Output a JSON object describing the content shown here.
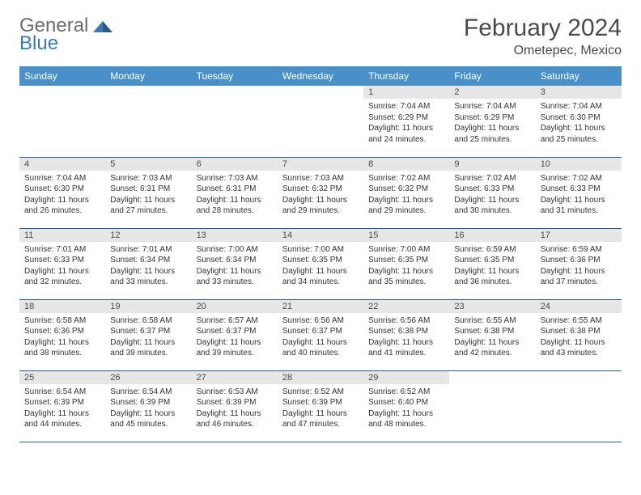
{
  "brand": {
    "part1": "General",
    "part2": "Blue"
  },
  "title": "February 2024",
  "location": "Ometepec, Mexico",
  "colors": {
    "header_bg": "#4a90c8",
    "header_text": "#ffffff",
    "daynum_bg": "#e6e6e6",
    "border": "#2a5a8a",
    "logo_blue": "#3b7ab5",
    "logo_gray": "#6b6b6b"
  },
  "weekdays": [
    "Sunday",
    "Monday",
    "Tuesday",
    "Wednesday",
    "Thursday",
    "Friday",
    "Saturday"
  ],
  "weeks": [
    [
      {
        "n": "",
        "sr": "",
        "ss": "",
        "dl": ""
      },
      {
        "n": "",
        "sr": "",
        "ss": "",
        "dl": ""
      },
      {
        "n": "",
        "sr": "",
        "ss": "",
        "dl": ""
      },
      {
        "n": "",
        "sr": "",
        "ss": "",
        "dl": ""
      },
      {
        "n": "1",
        "sr": "Sunrise: 7:04 AM",
        "ss": "Sunset: 6:29 PM",
        "dl": "Daylight: 11 hours and 24 minutes."
      },
      {
        "n": "2",
        "sr": "Sunrise: 7:04 AM",
        "ss": "Sunset: 6:29 PM",
        "dl": "Daylight: 11 hours and 25 minutes."
      },
      {
        "n": "3",
        "sr": "Sunrise: 7:04 AM",
        "ss": "Sunset: 6:30 PM",
        "dl": "Daylight: 11 hours and 25 minutes."
      }
    ],
    [
      {
        "n": "4",
        "sr": "Sunrise: 7:04 AM",
        "ss": "Sunset: 6:30 PM",
        "dl": "Daylight: 11 hours and 26 minutes."
      },
      {
        "n": "5",
        "sr": "Sunrise: 7:03 AM",
        "ss": "Sunset: 6:31 PM",
        "dl": "Daylight: 11 hours and 27 minutes."
      },
      {
        "n": "6",
        "sr": "Sunrise: 7:03 AM",
        "ss": "Sunset: 6:31 PM",
        "dl": "Daylight: 11 hours and 28 minutes."
      },
      {
        "n": "7",
        "sr": "Sunrise: 7:03 AM",
        "ss": "Sunset: 6:32 PM",
        "dl": "Daylight: 11 hours and 29 minutes."
      },
      {
        "n": "8",
        "sr": "Sunrise: 7:02 AM",
        "ss": "Sunset: 6:32 PM",
        "dl": "Daylight: 11 hours and 29 minutes."
      },
      {
        "n": "9",
        "sr": "Sunrise: 7:02 AM",
        "ss": "Sunset: 6:33 PM",
        "dl": "Daylight: 11 hours and 30 minutes."
      },
      {
        "n": "10",
        "sr": "Sunrise: 7:02 AM",
        "ss": "Sunset: 6:33 PM",
        "dl": "Daylight: 11 hours and 31 minutes."
      }
    ],
    [
      {
        "n": "11",
        "sr": "Sunrise: 7:01 AM",
        "ss": "Sunset: 6:33 PM",
        "dl": "Daylight: 11 hours and 32 minutes."
      },
      {
        "n": "12",
        "sr": "Sunrise: 7:01 AM",
        "ss": "Sunset: 6:34 PM",
        "dl": "Daylight: 11 hours and 33 minutes."
      },
      {
        "n": "13",
        "sr": "Sunrise: 7:00 AM",
        "ss": "Sunset: 6:34 PM",
        "dl": "Daylight: 11 hours and 33 minutes."
      },
      {
        "n": "14",
        "sr": "Sunrise: 7:00 AM",
        "ss": "Sunset: 6:35 PM",
        "dl": "Daylight: 11 hours and 34 minutes."
      },
      {
        "n": "15",
        "sr": "Sunrise: 7:00 AM",
        "ss": "Sunset: 6:35 PM",
        "dl": "Daylight: 11 hours and 35 minutes."
      },
      {
        "n": "16",
        "sr": "Sunrise: 6:59 AM",
        "ss": "Sunset: 6:35 PM",
        "dl": "Daylight: 11 hours and 36 minutes."
      },
      {
        "n": "17",
        "sr": "Sunrise: 6:59 AM",
        "ss": "Sunset: 6:36 PM",
        "dl": "Daylight: 11 hours and 37 minutes."
      }
    ],
    [
      {
        "n": "18",
        "sr": "Sunrise: 6:58 AM",
        "ss": "Sunset: 6:36 PM",
        "dl": "Daylight: 11 hours and 38 minutes."
      },
      {
        "n": "19",
        "sr": "Sunrise: 6:58 AM",
        "ss": "Sunset: 6:37 PM",
        "dl": "Daylight: 11 hours and 39 minutes."
      },
      {
        "n": "20",
        "sr": "Sunrise: 6:57 AM",
        "ss": "Sunset: 6:37 PM",
        "dl": "Daylight: 11 hours and 39 minutes."
      },
      {
        "n": "21",
        "sr": "Sunrise: 6:56 AM",
        "ss": "Sunset: 6:37 PM",
        "dl": "Daylight: 11 hours and 40 minutes."
      },
      {
        "n": "22",
        "sr": "Sunrise: 6:56 AM",
        "ss": "Sunset: 6:38 PM",
        "dl": "Daylight: 11 hours and 41 minutes."
      },
      {
        "n": "23",
        "sr": "Sunrise: 6:55 AM",
        "ss": "Sunset: 6:38 PM",
        "dl": "Daylight: 11 hours and 42 minutes."
      },
      {
        "n": "24",
        "sr": "Sunrise: 6:55 AM",
        "ss": "Sunset: 6:38 PM",
        "dl": "Daylight: 11 hours and 43 minutes."
      }
    ],
    [
      {
        "n": "25",
        "sr": "Sunrise: 6:54 AM",
        "ss": "Sunset: 6:39 PM",
        "dl": "Daylight: 11 hours and 44 minutes."
      },
      {
        "n": "26",
        "sr": "Sunrise: 6:54 AM",
        "ss": "Sunset: 6:39 PM",
        "dl": "Daylight: 11 hours and 45 minutes."
      },
      {
        "n": "27",
        "sr": "Sunrise: 6:53 AM",
        "ss": "Sunset: 6:39 PM",
        "dl": "Daylight: 11 hours and 46 minutes."
      },
      {
        "n": "28",
        "sr": "Sunrise: 6:52 AM",
        "ss": "Sunset: 6:39 PM",
        "dl": "Daylight: 11 hours and 47 minutes."
      },
      {
        "n": "29",
        "sr": "Sunrise: 6:52 AM",
        "ss": "Sunset: 6:40 PM",
        "dl": "Daylight: 11 hours and 48 minutes."
      },
      {
        "n": "",
        "sr": "",
        "ss": "",
        "dl": ""
      },
      {
        "n": "",
        "sr": "",
        "ss": "",
        "dl": ""
      }
    ]
  ]
}
